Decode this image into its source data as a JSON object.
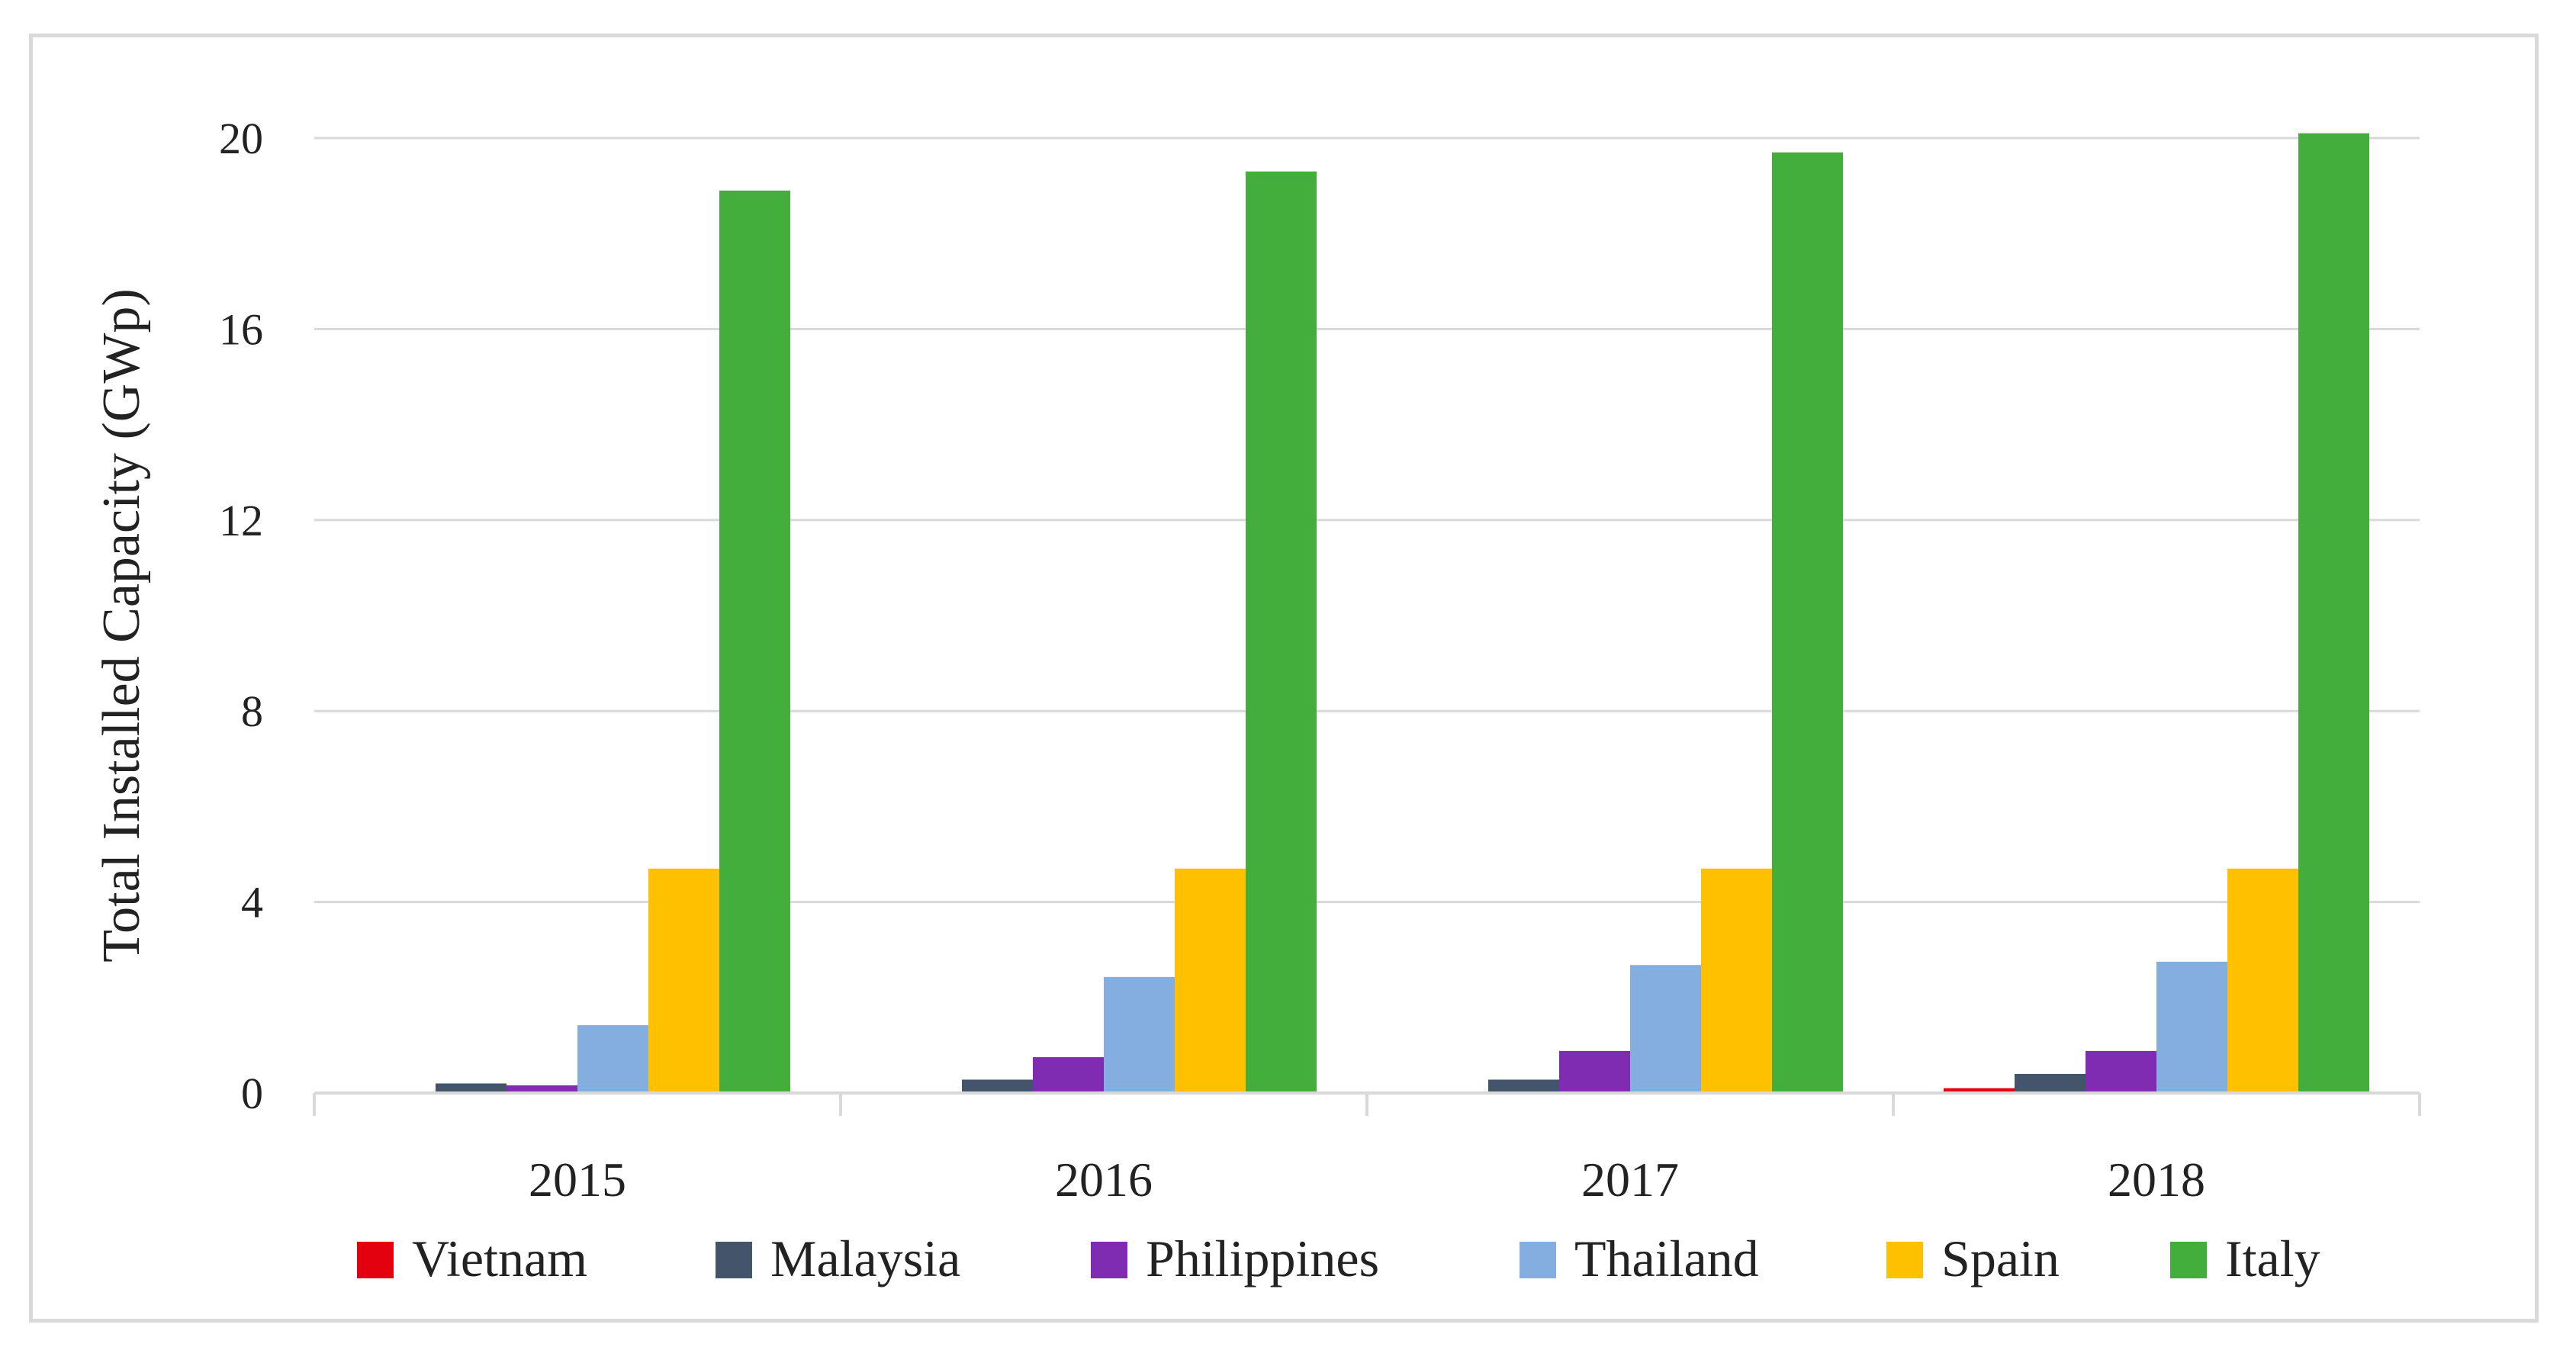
{
  "chart_data": {
    "type": "bar",
    "categories": [
      "2015",
      "2016",
      "2017",
      "2018"
    ],
    "series": [
      {
        "name": "Vietnam",
        "color": "#e3000f",
        "values": [
          0.005,
          0.005,
          0.008,
          0.1
        ]
      },
      {
        "name": "Malaysia",
        "color": "#44546a",
        "values": [
          0.2,
          0.28,
          0.28,
          0.4
        ]
      },
      {
        "name": "Philippines",
        "color": "#7f2cb3",
        "values": [
          0.16,
          0.75,
          0.88,
          0.88
        ]
      },
      {
        "name": "Thailand",
        "color": "#84aedf",
        "values": [
          1.42,
          2.43,
          2.68,
          2.75
        ]
      },
      {
        "name": "Spain",
        "color": "#ffc000",
        "values": [
          4.7,
          4.7,
          4.7,
          4.7
        ]
      },
      {
        "name": "Italy",
        "color": "#44ae3c",
        "values": [
          18.9,
          19.3,
          19.7,
          20.1
        ]
      }
    ],
    "ylabel": "Total Installed Capacity (GWp)",
    "xlabel": "",
    "ylim": [
      0,
      20
    ],
    "yticks": [
      "0",
      "4",
      "8",
      "12",
      "16",
      "20"
    ],
    "grid": true,
    "legend_position": "bottom"
  }
}
